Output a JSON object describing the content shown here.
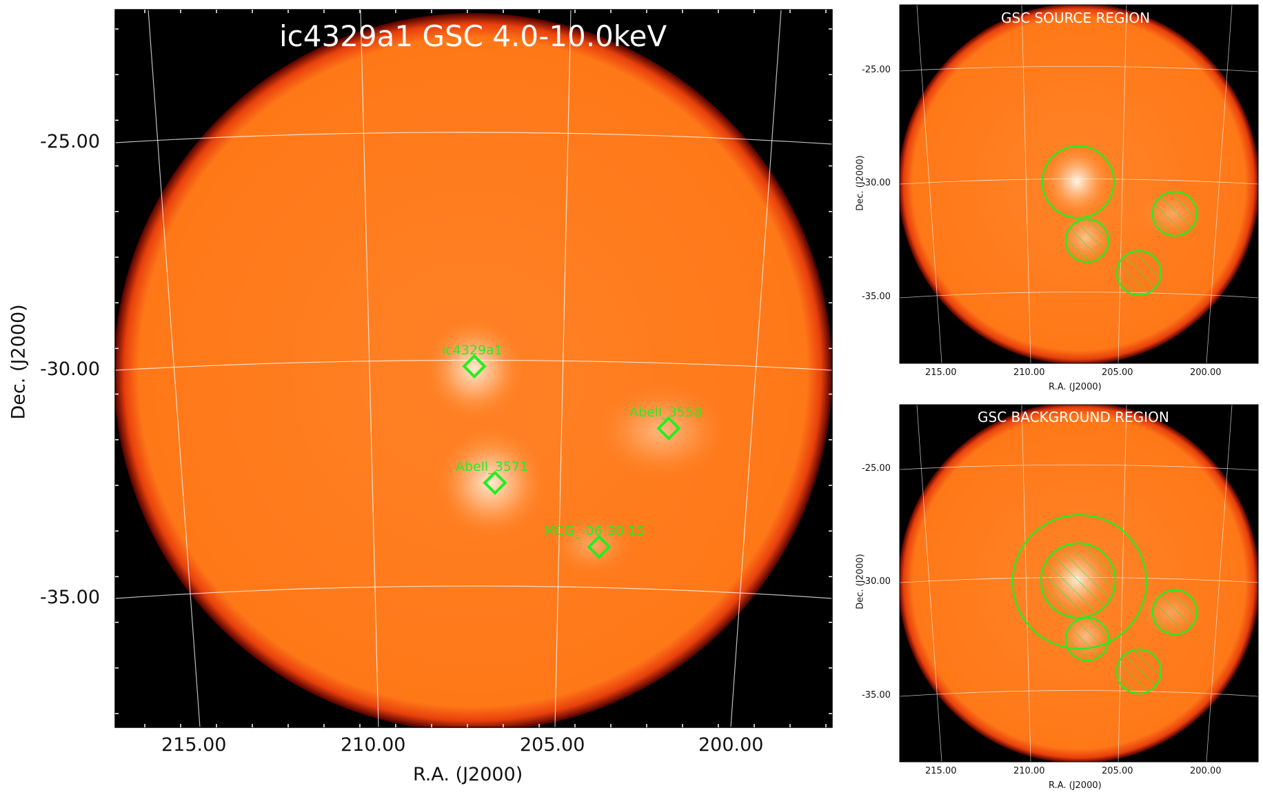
{
  "main": {
    "title": "ic4329a1 GSC 4.0-10.0keV",
    "xlabel": "R.A. (J2000)",
    "ylabel": "Dec. (J2000)",
    "ra_ticks": [
      "215.00",
      "210.00",
      "205.00",
      "200.00"
    ],
    "dec_ticks": [
      "-25.00",
      "-30.00",
      "-35.00"
    ],
    "sources": [
      {
        "name": "ic4329a1",
        "ra": 207.3,
        "dec": -30.3
      },
      {
        "name": "Abell_3558",
        "ra": 201.9,
        "dec": -31.5
      },
      {
        "name": "Abell_3571",
        "ra": 206.8,
        "dec": -32.9
      },
      {
        "name": "MCG_-06-30-15",
        "ra": 203.9,
        "dec": -34.3
      }
    ]
  },
  "source_panel": {
    "title": "GSC SOURCE REGION",
    "xlabel": "R.A. (J2000)",
    "ylabel": "Dec. (J2000)",
    "ra_ticks": [
      "215.00",
      "210.00",
      "205.00",
      "200.00"
    ],
    "dec_ticks": [
      "-25.00",
      "-30.00",
      "-35.00"
    ]
  },
  "background_panel": {
    "title": "GSC BACKGROUND REGION",
    "xlabel": "R.A. (J2000)",
    "ylabel": "Dec. (J2000)",
    "ra_ticks": [
      "215.00",
      "210.00",
      "205.00",
      "200.00"
    ],
    "dec_ticks": [
      "-25.00",
      "-30.00",
      "-35.00"
    ]
  },
  "colors": {
    "disk": "#ff7a1a",
    "region": "#22ee22",
    "grid": "#ffffff",
    "frame_bg": "#000000"
  }
}
